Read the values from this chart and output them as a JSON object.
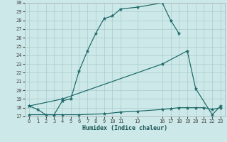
{
  "xlabel": "Humidex (Indice chaleur)",
  "bg_color": "#cce8e8",
  "grid_color": "#aacccc",
  "line_color": "#1a6666",
  "xlim": [
    -0.5,
    23.5
  ],
  "ylim": [
    17,
    30
  ],
  "xtick_vals": [
    0,
    1,
    2,
    3,
    4,
    5,
    6,
    7,
    8,
    9,
    10,
    11,
    13,
    16,
    17,
    18,
    19,
    20,
    21,
    22,
    23
  ],
  "xtick_labels": [
    "0",
    "1",
    "2",
    "3",
    "4",
    "5",
    "6",
    "7",
    "8",
    "9",
    "10",
    "11",
    "13",
    "16",
    "17",
    "18",
    "19",
    "20",
    "21",
    "22",
    "23"
  ],
  "ytick_vals": [
    17,
    18,
    19,
    20,
    21,
    22,
    23,
    24,
    25,
    26,
    27,
    28,
    29,
    30
  ],
  "line1_x": [
    0,
    1,
    2,
    3,
    4,
    5,
    6,
    7,
    8,
    9,
    10,
    11,
    13,
    16,
    17,
    18
  ],
  "line1_y": [
    18.2,
    17.8,
    17.2,
    17.2,
    18.8,
    19.0,
    22.2,
    24.5,
    26.5,
    28.2,
    28.5,
    29.3,
    29.5,
    30.0,
    28.0,
    26.5
  ],
  "line2_x": [
    0,
    4,
    16,
    19,
    20,
    22,
    23
  ],
  "line2_y": [
    18.2,
    19.0,
    23.0,
    24.5,
    20.2,
    17.2,
    18.2
  ],
  "line3_x": [
    0,
    3,
    4,
    6,
    9,
    11,
    13,
    16,
    17,
    18,
    19,
    20,
    21,
    22,
    23
  ],
  "line3_y": [
    17.2,
    17.2,
    17.2,
    17.2,
    17.3,
    17.5,
    17.6,
    17.8,
    17.9,
    18.0,
    18.0,
    18.0,
    18.0,
    17.8,
    18.0
  ]
}
